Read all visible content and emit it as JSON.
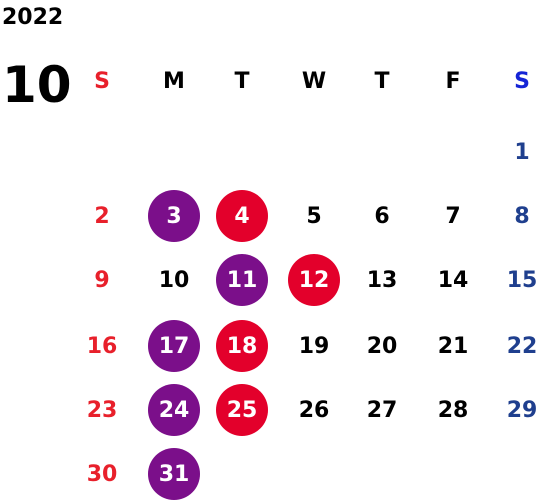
{
  "year": "2022",
  "month": "10",
  "weekdays": [
    "S",
    "M",
    "T",
    "W",
    "T",
    "F",
    "S"
  ],
  "days": [
    {
      "label": "1",
      "col": 6,
      "row": 0,
      "mark": ""
    },
    {
      "label": "2",
      "col": 0,
      "row": 1,
      "mark": ""
    },
    {
      "label": "3",
      "col": 1,
      "row": 1,
      "mark": "purple"
    },
    {
      "label": "4",
      "col": 2,
      "row": 1,
      "mark": "red"
    },
    {
      "label": "5",
      "col": 3,
      "row": 1,
      "mark": ""
    },
    {
      "label": "6",
      "col": 4,
      "row": 1,
      "mark": ""
    },
    {
      "label": "7",
      "col": 5,
      "row": 1,
      "mark": ""
    },
    {
      "label": "8",
      "col": 6,
      "row": 1,
      "mark": ""
    },
    {
      "label": "9",
      "col": 0,
      "row": 2,
      "mark": ""
    },
    {
      "label": "10",
      "col": 1,
      "row": 2,
      "mark": ""
    },
    {
      "label": "11",
      "col": 2,
      "row": 2,
      "mark": "purple"
    },
    {
      "label": "12",
      "col": 3,
      "row": 2,
      "mark": "red"
    },
    {
      "label": "13",
      "col": 4,
      "row": 2,
      "mark": ""
    },
    {
      "label": "14",
      "col": 5,
      "row": 2,
      "mark": ""
    },
    {
      "label": "15",
      "col": 6,
      "row": 2,
      "mark": ""
    },
    {
      "label": "16",
      "col": 0,
      "row": 3,
      "mark": ""
    },
    {
      "label": "17",
      "col": 1,
      "row": 3,
      "mark": "purple"
    },
    {
      "label": "18",
      "col": 2,
      "row": 3,
      "mark": "red"
    },
    {
      "label": "19",
      "col": 3,
      "row": 3,
      "mark": ""
    },
    {
      "label": "20",
      "col": 4,
      "row": 3,
      "mark": ""
    },
    {
      "label": "21",
      "col": 5,
      "row": 3,
      "mark": ""
    },
    {
      "label": "22",
      "col": 6,
      "row": 3,
      "mark": ""
    },
    {
      "label": "23",
      "col": 0,
      "row": 4,
      "mark": ""
    },
    {
      "label": "24",
      "col": 1,
      "row": 4,
      "mark": "purple"
    },
    {
      "label": "25",
      "col": 2,
      "row": 4,
      "mark": "red"
    },
    {
      "label": "26",
      "col": 3,
      "row": 4,
      "mark": ""
    },
    {
      "label": "27",
      "col": 4,
      "row": 4,
      "mark": ""
    },
    {
      "label": "28",
      "col": 5,
      "row": 4,
      "mark": ""
    },
    {
      "label": "29",
      "col": 6,
      "row": 4,
      "mark": ""
    },
    {
      "label": "30",
      "col": 0,
      "row": 5,
      "mark": ""
    },
    {
      "label": "31",
      "col": 1,
      "row": 5,
      "mark": "purple"
    }
  ],
  "colors": {
    "sunday": "#e8202b",
    "saturday": "#1f3f8e",
    "saturday_header": "#1524d6",
    "mark_purple": "#7b0f8a",
    "mark_red": "#e3002b"
  }
}
